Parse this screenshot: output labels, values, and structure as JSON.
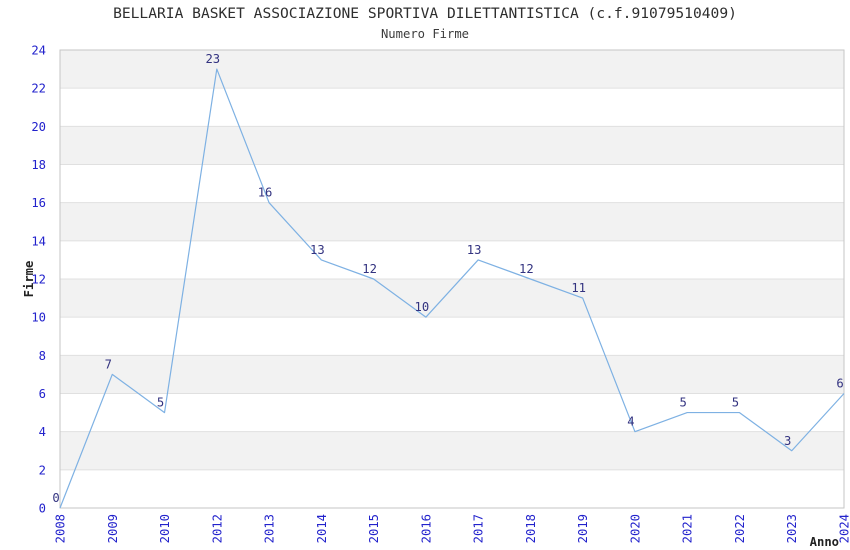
{
  "chart_data": {
    "type": "line",
    "title": "BELLARIA BASKET ASSOCIAZIONE SPORTIVA DILETTANTISTICA (c.f.91079510409)",
    "subtitle": "Numero Firme",
    "xlabel": "Anno",
    "ylabel": "Firme",
    "categories": [
      "2008",
      "2009",
      "2010",
      "2012",
      "2013",
      "2014",
      "2015",
      "2016",
      "2017",
      "2018",
      "2019",
      "2020",
      "2021",
      "2022",
      "2023",
      "2024"
    ],
    "values": [
      0,
      7,
      5,
      23,
      16,
      13,
      12,
      10,
      13,
      12,
      11,
      4,
      5,
      5,
      3,
      6
    ],
    "data_labels_shown": true,
    "ylim": [
      0,
      24
    ],
    "yticks": [
      0,
      2,
      4,
      6,
      8,
      10,
      12,
      14,
      16,
      18,
      20,
      22,
      24
    ],
    "grid": true,
    "banded_background": true,
    "legend_position": "none",
    "colors": {
      "line": "#7eb1e3",
      "band_gray": "#f2f2f2",
      "gridline": "#e0e0e0",
      "plot_border": "#c6c6c6",
      "axis_tick_label": "#2222cc",
      "data_label": "#333380",
      "axis_title": "#222222",
      "title": "#2e2e2e",
      "subtitle": "#3c3c3c",
      "background": "#ffffff"
    }
  }
}
